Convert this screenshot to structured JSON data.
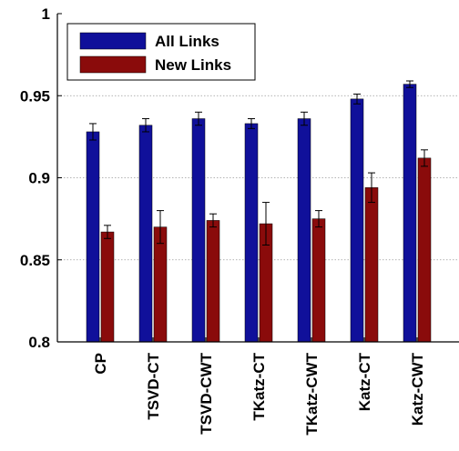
{
  "chart_data": {
    "type": "bar",
    "title": "",
    "xlabel": "",
    "ylabel": "",
    "ylim": [
      0.8,
      1.0
    ],
    "yticks": [
      "0.8",
      "0.85",
      "0.9",
      "0.95",
      "1"
    ],
    "grid": "horizontal dotted",
    "legend_position": "top-left",
    "categories": [
      "CP",
      "TSVD-CT",
      "TSVD-CWT",
      "TKatz-CT",
      "TKatz-CWT",
      "Katz-CT",
      "Katz-CWT"
    ],
    "series": [
      {
        "name": "All Links",
        "color": "#10109a",
        "values": [
          0.928,
          0.932,
          0.936,
          0.933,
          0.936,
          0.948,
          0.957
        ],
        "errors": [
          0.005,
          0.004,
          0.004,
          0.003,
          0.004,
          0.003,
          0.002
        ]
      },
      {
        "name": "New Links",
        "color": "#8a0b0b",
        "values": [
          0.867,
          0.87,
          0.874,
          0.872,
          0.875,
          0.894,
          0.912
        ],
        "errors": [
          0.004,
          0.01,
          0.004,
          0.013,
          0.005,
          0.009,
          0.005
        ]
      }
    ]
  }
}
